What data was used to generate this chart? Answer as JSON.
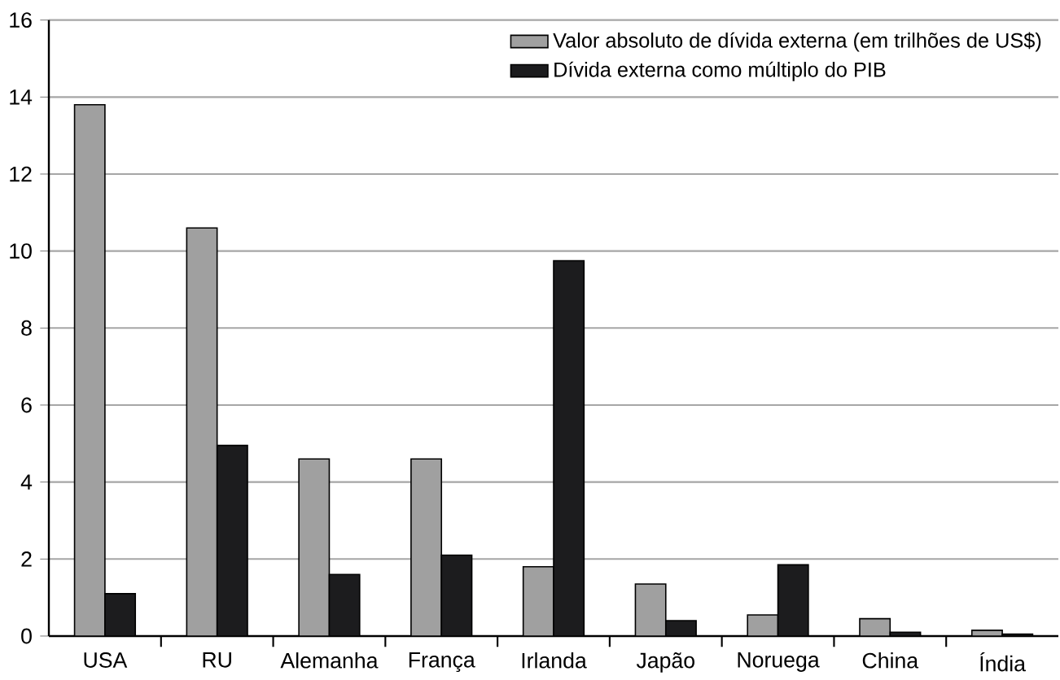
{
  "chart_data": {
    "type": "bar",
    "categories": [
      "USA",
      "RU",
      "Alemanha",
      "França",
      "Irlanda",
      "Japão",
      "Noruega",
      "China",
      "Índia"
    ],
    "series": [
      {
        "name": "Valor absoluto de dívida externa (em trilhões de US$)",
        "color": "#a0a0a0",
        "values": [
          13.8,
          10.6,
          4.6,
          4.6,
          1.8,
          1.35,
          0.55,
          0.45,
          0.15
        ]
      },
      {
        "name": "Dívida externa como múltiplo do PIB",
        "color": "#1c1c1e",
        "values": [
          1.1,
          4.95,
          1.6,
          2.1,
          9.75,
          0.4,
          1.85,
          0.1,
          0.05
        ]
      }
    ],
    "ylim": [
      0,
      16
    ],
    "yticks": [
      0,
      2,
      4,
      6,
      8,
      10,
      12,
      14,
      16
    ],
    "grid": "y",
    "legend": "top right"
  }
}
